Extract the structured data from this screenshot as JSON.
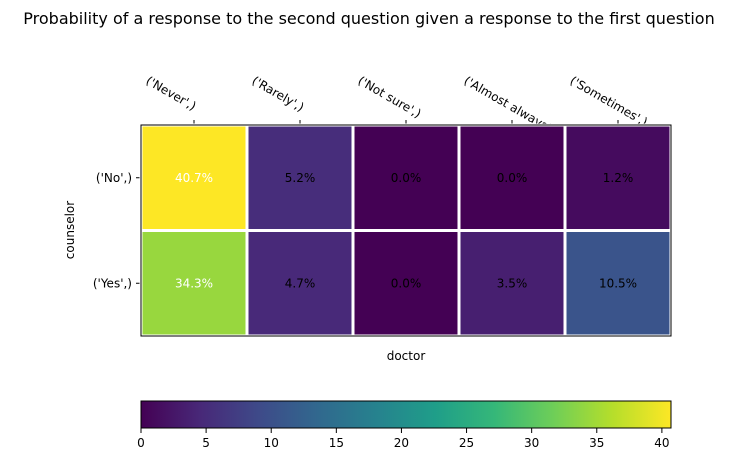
{
  "chart_data": {
    "type": "heatmap",
    "title": "Probability of a response to the second question given a response to the first question",
    "xlabel": "doctor",
    "ylabel": "counselor",
    "x_categories": [
      "('Never',)",
      "('Rarely',)",
      "('Not sure',)",
      "('Almost always',)",
      "('Sometimes',)"
    ],
    "y_categories": [
      "('No',)",
      "('Yes',)"
    ],
    "values": [
      [
        40.7,
        5.2,
        0.0,
        0.0,
        1.2
      ],
      [
        34.3,
        4.7,
        0.0,
        3.5,
        10.5
      ]
    ],
    "cell_labels": [
      [
        "40.7%",
        "5.2%",
        "0.0%",
        "0.0%",
        "1.2%"
      ],
      [
        "34.3%",
        "4.7%",
        "0.0%",
        "3.5%",
        "10.5%"
      ]
    ],
    "colormap": "viridis",
    "vmin": 0,
    "vmax": 40.7,
    "colorbar": {
      "orientation": "horizontal",
      "placement": "bottom",
      "ticks": [
        0,
        5,
        10,
        15,
        20,
        25,
        30,
        35,
        40
      ],
      "tick_labels": [
        "0",
        "5",
        "10",
        "15",
        "20",
        "25",
        "30",
        "35",
        "40"
      ]
    },
    "cell_label_colors": {
      "light": "#ffffff",
      "dark": "#000000"
    },
    "grid_color": "#ffffff"
  }
}
